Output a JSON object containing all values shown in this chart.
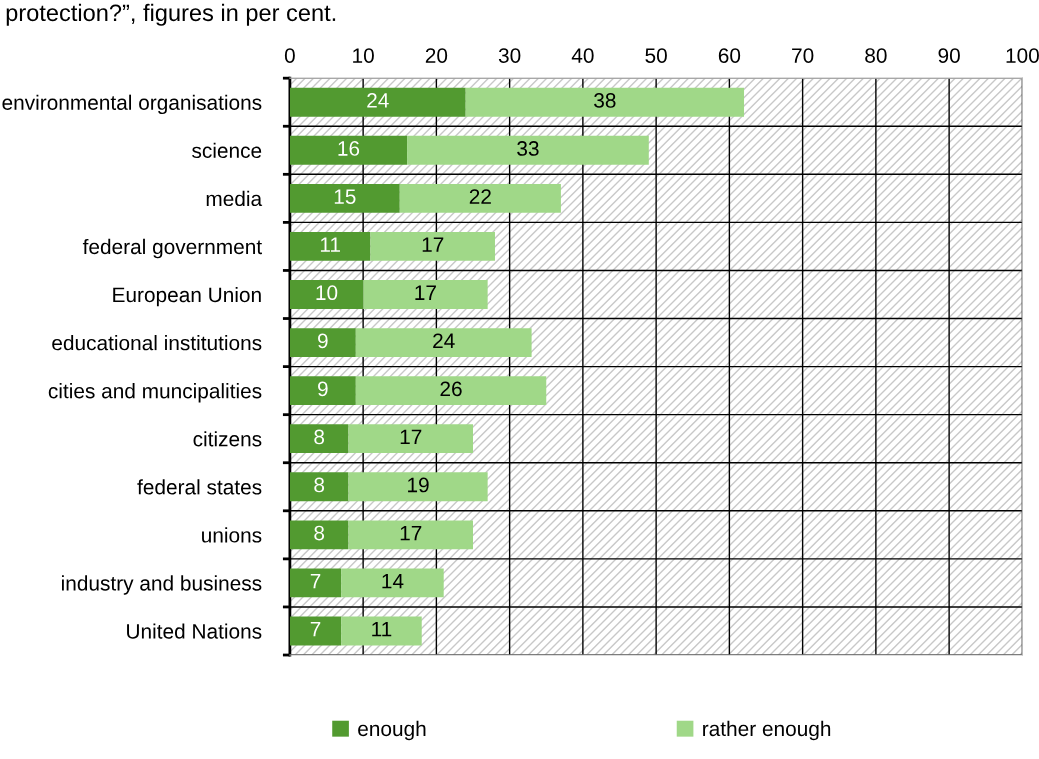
{
  "chart_data": {
    "type": "bar",
    "orientation": "horizontal",
    "stacked": true,
    "title": "protection?”, figures in per cent.",
    "categories": [
      "environmental organisations",
      "science",
      "media",
      "federal government",
      "European Union",
      "educational institutions",
      "cities and muncipalities",
      "citizens",
      "federal states",
      "unions",
      "industry and business",
      "United Nations"
    ],
    "series": [
      {
        "name": "enough",
        "color": "#529a30",
        "values": [
          24,
          16,
          15,
          11,
          10,
          9,
          9,
          8,
          8,
          8,
          7,
          7
        ]
      },
      {
        "name": "rather enough",
        "color": "#a0d888",
        "values": [
          38,
          33,
          22,
          17,
          17,
          24,
          26,
          17,
          19,
          17,
          14,
          11
        ]
      }
    ],
    "xlim": [
      0,
      100
    ],
    "xticks": [
      0,
      10,
      20,
      30,
      40,
      50,
      60,
      70,
      80,
      90,
      100
    ],
    "grid": true,
    "legend": "bottom",
    "data_labels": true
  }
}
